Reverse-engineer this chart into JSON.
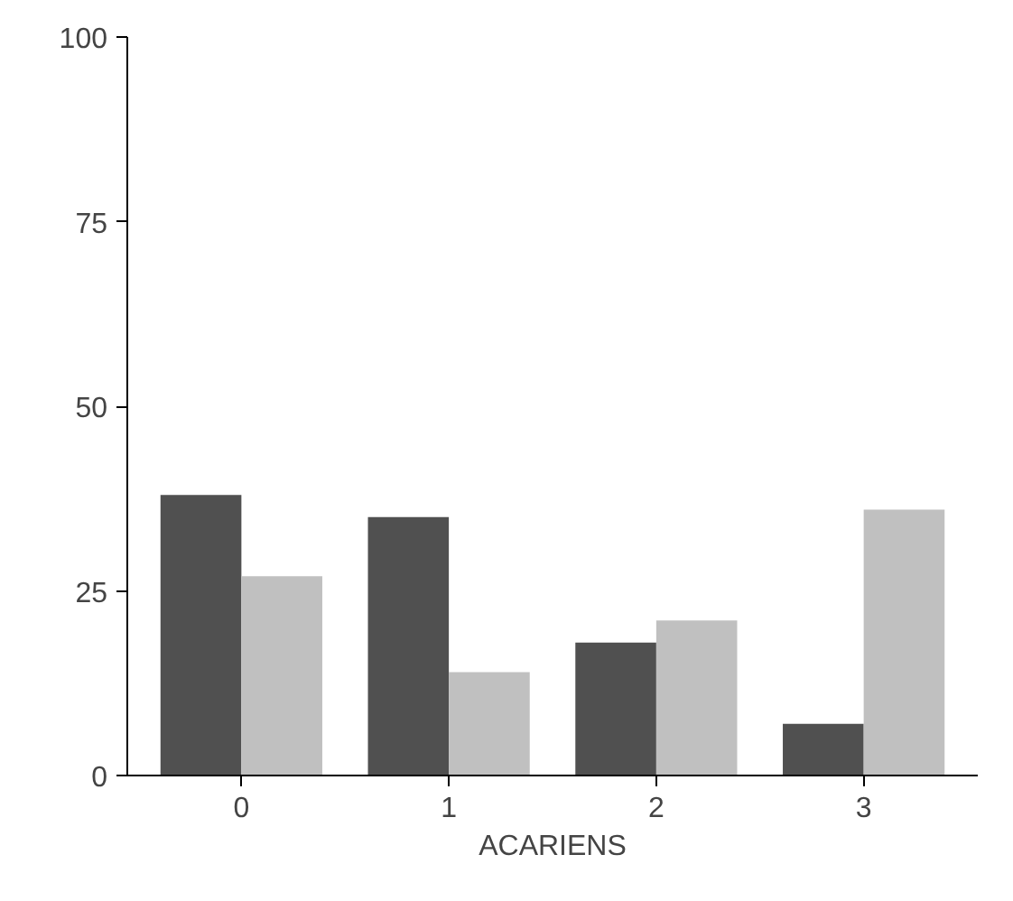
{
  "chart_data": {
    "type": "bar",
    "xlabel": "ACARIENS",
    "categories": [
      "0",
      "1",
      "2",
      "3"
    ],
    "series": [
      {
        "color": "#505050",
        "values": [
          38,
          35,
          18,
          7
        ]
      },
      {
        "color": "#c0c0c0",
        "values": [
          27,
          14,
          21,
          36
        ]
      }
    ],
    "ylim": [
      0,
      100
    ],
    "yticks": [
      0,
      25,
      50,
      75,
      100
    ],
    "grid": false
  }
}
